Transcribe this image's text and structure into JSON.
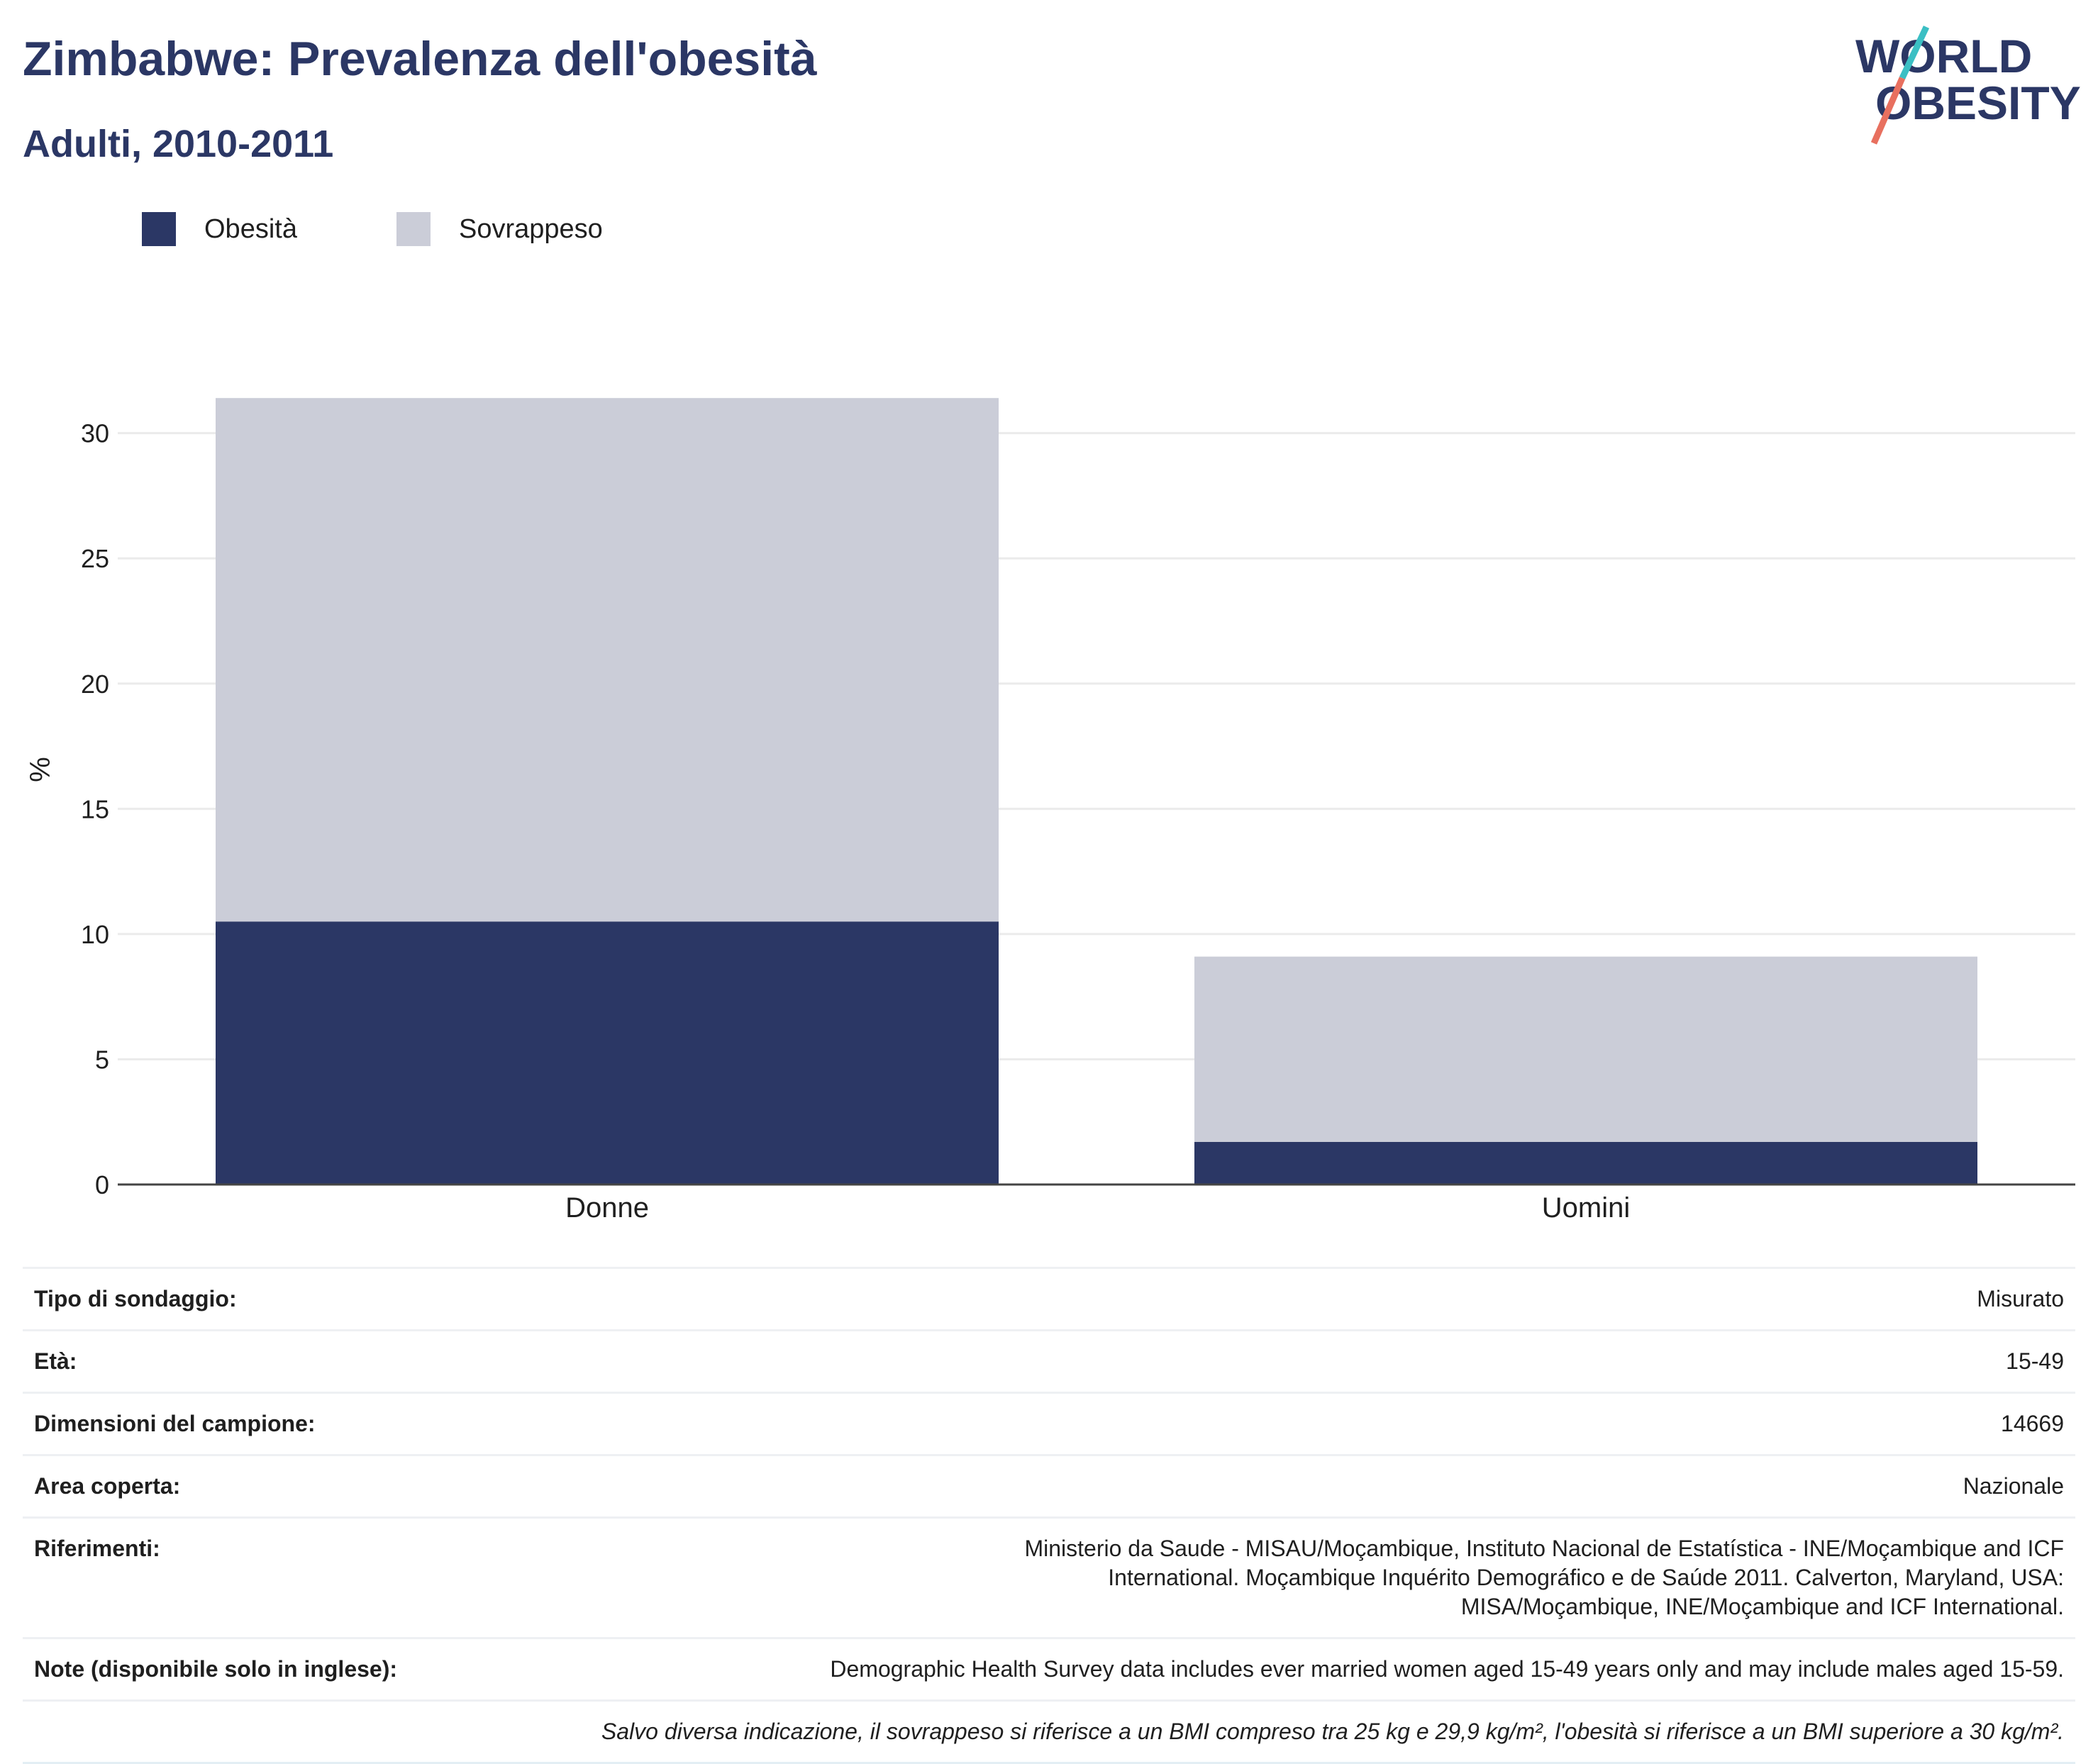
{
  "header": {
    "title": "Zimbabwe: Prevalenza dell'obesità",
    "subtitle": "Adulti, 2010-2011"
  },
  "logo": {
    "line1": "WORLD",
    "line2": "OBESITY",
    "colors": {
      "text": "#2b3765",
      "slash_top": "#3bbfc4",
      "slash_bottom": "#e8705f"
    }
  },
  "colors": {
    "obesity": "#2b3765",
    "overweight": "#cbcdd8",
    "gridline": "#ebebeb",
    "axis": "#444444"
  },
  "chart_data": {
    "type": "bar",
    "stacked": true,
    "categories": [
      "Donne",
      "Uomini"
    ],
    "series": [
      {
        "name": "Obesità",
        "color": "#2b3765",
        "values": [
          10.5,
          1.7
        ]
      },
      {
        "name": "Sovrappeso",
        "color": "#cbcdd8",
        "values": [
          20.9,
          7.4
        ]
      }
    ],
    "xlabel": "",
    "ylabel": "%",
    "ylim": [
      0,
      32
    ],
    "yticks": [
      0,
      5,
      10,
      15,
      20,
      25,
      30
    ],
    "grid": true,
    "legend_position": "top-left"
  },
  "info": {
    "rows": [
      {
        "label": "Tipo di sondaggio:",
        "value": "Misurato"
      },
      {
        "label": "Età:",
        "value": "15-49"
      },
      {
        "label": "Dimensioni del campione:",
        "value": "14669"
      },
      {
        "label": "Area coperta:",
        "value": "Nazionale"
      },
      {
        "label": "Riferimenti:",
        "value": "Ministerio da Saude - MISAU/Moçambique, Instituto Nacional de Estatística - INE/Moçambique and ICF International. Moçambique Inquérito Demográfico e de Saúde 2011. Calverton, Maryland, USA: MISA/Moçambique, INE/Moçambique and ICF International."
      },
      {
        "label": "Note (disponibile solo in inglese):",
        "value": "Demographic Health Survey data includes ever married women aged 15-49 years only and may include males aged 15-59."
      }
    ],
    "footnote": "Salvo diversa indicazione, il sovrappeso si riferisce a un BMI compreso tra 25 kg e 29,9 kg/m², l'obesità si riferisce a un BMI superiore a 30 kg/m²."
  }
}
